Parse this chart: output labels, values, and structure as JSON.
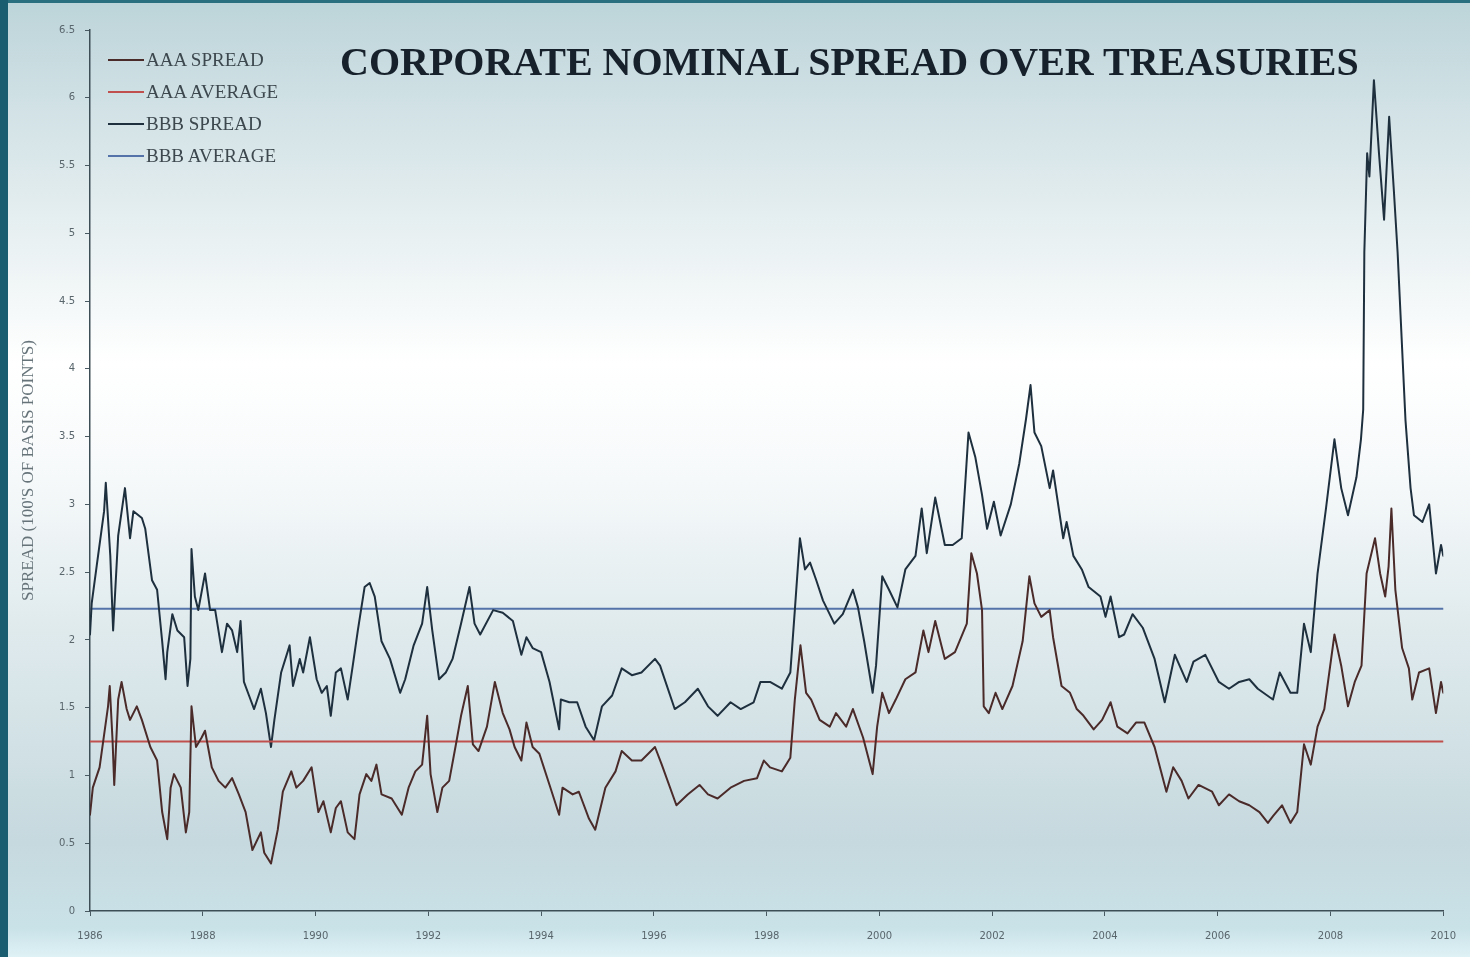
{
  "chart_data": {
    "type": "line",
    "title": "CORPORATE NOMINAL SPREAD OVER TREASURIES",
    "ylabel": "SPREAD (100'S OF BASIS POINTS)",
    "xlim": [
      1986,
      2010
    ],
    "xticks": [
      1986,
      1988,
      1990,
      1992,
      1994,
      1996,
      1998,
      2000,
      2002,
      2004,
      2006,
      2008,
      2010
    ],
    "ylim": [
      0,
      6.5
    ],
    "yticks": [
      0,
      0.5,
      1,
      1.5,
      2,
      2.5,
      3,
      3.5,
      4,
      4.5,
      5,
      5.5,
      6,
      6.5
    ],
    "grid": false,
    "legend": "top left",
    "series": [
      {
        "name": "AAA SPREAD",
        "color": "#4b2a2a",
        "x": [
          1986.0,
          1986.05,
          1986.17,
          1986.32,
          1986.35,
          1986.4,
          1986.43,
          1986.5,
          1986.56,
          1986.65,
          1986.71,
          1986.83,
          1986.92,
          1987.07,
          1987.19,
          1987.28,
          1987.37,
          1987.43,
          1987.49,
          1987.61,
          1987.7,
          1987.76,
          1987.8,
          1987.88,
          1987.98,
          1988.04,
          1988.16,
          1988.28,
          1988.4,
          1988.52,
          1988.64,
          1988.76,
          1988.88,
          1989.03,
          1989.09,
          1989.21,
          1989.33,
          1989.42,
          1989.57,
          1989.66,
          1989.78,
          1989.93,
          1990.05,
          1990.14,
          1990.27,
          1990.36,
          1990.45,
          1990.57,
          1990.69,
          1990.78,
          1990.9,
          1990.99,
          1991.08,
          1991.17,
          1991.35,
          1991.53,
          1991.65,
          1991.77,
          1991.89,
          1991.98,
          1992.04,
          1992.16,
          1992.25,
          1992.37,
          1992.49,
          1992.58,
          1992.7,
          1992.79,
          1992.89,
          1993.04,
          1993.18,
          1993.32,
          1993.44,
          1993.53,
          1993.65,
          1993.74,
          1993.85,
          1993.97,
          1994.15,
          1994.32,
          1994.38,
          1994.56,
          1994.67,
          1994.85,
          1994.96,
          1995.14,
          1995.32,
          1995.43,
          1995.61,
          1995.78,
          1996.02,
          1996.14,
          1996.4,
          1996.6,
          1996.81,
          1996.96,
          1997.13,
          1997.36,
          1997.6,
          1997.83,
          1997.95,
          1998.06,
          1998.27,
          1998.42,
          1998.5,
          1998.6,
          1998.7,
          1998.79,
          1998.94,
          1999.12,
          1999.23,
          1999.41,
          1999.53,
          1999.71,
          1999.88,
          1999.96,
          2000.05,
          2000.17,
          2000.29,
          2000.46,
          2000.64,
          2000.78,
          2000.87,
          2000.99,
          2001.16,
          2001.34,
          2001.55,
          2001.63,
          2001.73,
          2001.82,
          2001.85,
          2001.94,
          2002.06,
          2002.18,
          2002.36,
          2002.54,
          2002.66,
          2002.75,
          2002.87,
          2003.02,
          2003.08,
          2003.23,
          2003.38,
          2003.5,
          2003.62,
          2003.8,
          2003.95,
          2004.1,
          2004.22,
          2004.4,
          2004.55,
          2004.7,
          2004.88,
          2005.09,
          2005.21,
          2005.36,
          2005.48,
          2005.66,
          2005.9,
          2006.02,
          2006.2,
          2006.38,
          2006.56,
          2006.74,
          2006.89,
          2006.98,
          2007.14,
          2007.29,
          2007.41,
          2007.53,
          2007.65,
          2007.77,
          2007.89,
          2008.07,
          2008.19,
          2008.31,
          2008.43,
          2008.55,
          2008.64,
          2008.79,
          2008.88,
          2008.97,
          2009.03,
          2009.08,
          2009.15,
          2009.27,
          2009.39,
          2009.45,
          2009.57,
          2009.75,
          2009.87,
          2009.96,
          2010.0
        ],
        "values": [
          0.71,
          0.91,
          1.06,
          1.51,
          1.66,
          1.26,
          0.93,
          1.56,
          1.69,
          1.49,
          1.41,
          1.51,
          1.41,
          1.21,
          1.11,
          0.73,
          0.53,
          0.91,
          1.01,
          0.91,
          0.58,
          0.73,
          1.51,
          1.21,
          1.28,
          1.33,
          1.06,
          0.96,
          0.91,
          0.98,
          0.86,
          0.73,
          0.45,
          0.58,
          0.43,
          0.35,
          0.6,
          0.88,
          1.03,
          0.91,
          0.96,
          1.06,
          0.73,
          0.81,
          0.58,
          0.76,
          0.81,
          0.58,
          0.53,
          0.86,
          1.01,
          0.96,
          1.08,
          0.86,
          0.83,
          0.71,
          0.91,
          1.03,
          1.08,
          1.44,
          1.01,
          0.73,
          0.91,
          0.96,
          1.23,
          1.44,
          1.66,
          1.23,
          1.18,
          1.36,
          1.69,
          1.46,
          1.34,
          1.21,
          1.11,
          1.39,
          1.21,
          1.16,
          0.93,
          0.71,
          0.91,
          0.86,
          0.88,
          0.68,
          0.6,
          0.91,
          1.03,
          1.18,
          1.11,
          1.11,
          1.21,
          1.08,
          0.78,
          0.86,
          0.93,
          0.86,
          0.83,
          0.91,
          0.96,
          0.98,
          1.11,
          1.06,
          1.03,
          1.13,
          1.56,
          1.96,
          1.61,
          1.56,
          1.41,
          1.36,
          1.46,
          1.36,
          1.49,
          1.28,
          1.01,
          1.36,
          1.61,
          1.46,
          1.56,
          1.71,
          1.76,
          2.07,
          1.91,
          2.14,
          1.86,
          1.91,
          2.12,
          2.64,
          2.49,
          2.22,
          1.51,
          1.46,
          1.61,
          1.49,
          1.66,
          1.99,
          2.47,
          2.27,
          2.17,
          2.22,
          2.02,
          1.66,
          1.61,
          1.49,
          1.44,
          1.34,
          1.41,
          1.54,
          1.36,
          1.31,
          1.39,
          1.39,
          1.21,
          0.88,
          1.06,
          0.96,
          0.83,
          0.93,
          0.88,
          0.78,
          0.86,
          0.81,
          0.78,
          0.73,
          0.65,
          0.7,
          0.78,
          0.65,
          0.73,
          1.23,
          1.08,
          1.36,
          1.49,
          2.04,
          1.81,
          1.51,
          1.69,
          1.81,
          2.49,
          2.75,
          2.49,
          2.32,
          2.54,
          2.97,
          2.37,
          1.94,
          1.79,
          1.56,
          1.76,
          1.79,
          1.46,
          1.69,
          1.61
        ]
      },
      {
        "name": "AAA AVERAGE",
        "color": "#c0504d",
        "x": [
          1986,
          2010
        ],
        "values": [
          1.25,
          1.25
        ]
      },
      {
        "name": "BBB SPREAD",
        "color": "#1e2f3e",
        "x": [
          1986.0,
          1986.03,
          1986.12,
          1986.25,
          1986.28,
          1986.36,
          1986.41,
          1986.5,
          1986.62,
          1986.71,
          1986.77,
          1986.92,
          1986.98,
          1987.1,
          1987.19,
          1987.28,
          1987.34,
          1987.37,
          1987.46,
          1987.55,
          1987.67,
          1987.73,
          1987.78,
          1987.8,
          1987.86,
          1987.92,
          1988.04,
          1988.13,
          1988.22,
          1988.34,
          1988.43,
          1988.52,
          1988.61,
          1988.67,
          1988.73,
          1988.82,
          1988.91,
          1989.03,
          1989.12,
          1989.21,
          1989.27,
          1989.39,
          1989.54,
          1989.6,
          1989.72,
          1989.78,
          1989.9,
          1990.02,
          1990.11,
          1990.2,
          1990.27,
          1990.36,
          1990.45,
          1990.57,
          1990.66,
          1990.75,
          1990.87,
          1990.96,
          1991.05,
          1991.17,
          1991.32,
          1991.5,
          1991.59,
          1991.74,
          1991.89,
          1991.98,
          1992.07,
          1992.19,
          1992.31,
          1992.43,
          1992.58,
          1992.73,
          1992.82,
          1992.92,
          1993.15,
          1993.32,
          1993.5,
          1993.65,
          1993.74,
          1993.85,
          1994.0,
          1994.15,
          1994.32,
          1994.35,
          1994.5,
          1994.64,
          1994.79,
          1994.94,
          1995.08,
          1995.26,
          1995.43,
          1995.61,
          1995.78,
          1996.02,
          1996.11,
          1996.37,
          1996.55,
          1996.78,
          1996.96,
          1997.13,
          1997.36,
          1997.54,
          1997.77,
          1997.89,
          1998.06,
          1998.27,
          1998.42,
          1998.5,
          1998.59,
          1998.68,
          1998.77,
          1998.88,
          1999.0,
          1999.2,
          1999.35,
          1999.53,
          1999.62,
          1999.73,
          1999.88,
          1999.94,
          2000.05,
          2000.17,
          2000.32,
          2000.46,
          2000.64,
          2000.75,
          2000.84,
          2000.99,
          2001.16,
          2001.3,
          2001.46,
          2001.58,
          2001.7,
          2001.82,
          2001.91,
          2002.03,
          2002.15,
          2002.33,
          2002.48,
          2002.6,
          2002.68,
          2002.75,
          2002.87,
          2003.02,
          2003.08,
          2003.26,
          2003.32,
          2003.44,
          2003.59,
          2003.71,
          2003.92,
          2004.01,
          2004.1,
          2004.25,
          2004.34,
          2004.49,
          2004.67,
          2004.88,
          2005.06,
          2005.24,
          2005.45,
          2005.57,
          2005.78,
          2006.02,
          2006.2,
          2006.38,
          2006.56,
          2006.71,
          2006.98,
          2007.1,
          2007.29,
          2007.41,
          2007.53,
          2007.65,
          2007.77,
          2007.92,
          2008.07,
          2008.19,
          2008.31,
          2008.46,
          2008.54,
          2008.58,
          2008.6,
          2008.65,
          2008.69,
          2008.77,
          2008.86,
          2008.95,
          2009.04,
          2009.12,
          2009.19,
          2009.33,
          2009.42,
          2009.48,
          2009.63,
          2009.75,
          2009.87,
          2009.96,
          2010.0
        ],
        "values": [
          2.04,
          2.27,
          2.55,
          2.95,
          3.16,
          2.62,
          2.07,
          2.77,
          3.12,
          2.75,
          2.95,
          2.9,
          2.82,
          2.44,
          2.37,
          1.99,
          1.71,
          1.91,
          2.19,
          2.07,
          2.02,
          1.66,
          1.86,
          2.67,
          2.32,
          2.22,
          2.49,
          2.22,
          2.22,
          1.91,
          2.12,
          2.07,
          1.91,
          2.14,
          1.69,
          1.59,
          1.49,
          1.64,
          1.46,
          1.21,
          1.41,
          1.76,
          1.96,
          1.66,
          1.86,
          1.76,
          2.02,
          1.71,
          1.61,
          1.66,
          1.44,
          1.76,
          1.79,
          1.56,
          1.81,
          2.07,
          2.39,
          2.42,
          2.32,
          1.99,
          1.86,
          1.61,
          1.71,
          1.96,
          2.12,
          2.39,
          2.07,
          1.71,
          1.76,
          1.86,
          2.12,
          2.39,
          2.12,
          2.04,
          2.22,
          2.2,
          2.14,
          1.89,
          2.02,
          1.94,
          1.91,
          1.69,
          1.34,
          1.56,
          1.54,
          1.54,
          1.36,
          1.26,
          1.51,
          1.59,
          1.79,
          1.74,
          1.76,
          1.86,
          1.81,
          1.49,
          1.54,
          1.64,
          1.51,
          1.44,
          1.54,
          1.49,
          1.54,
          1.69,
          1.69,
          1.64,
          1.76,
          2.22,
          2.75,
          2.52,
          2.57,
          2.44,
          2.29,
          2.12,
          2.19,
          2.37,
          2.24,
          1.99,
          1.61,
          1.81,
          2.47,
          2.37,
          2.24,
          2.52,
          2.62,
          2.97,
          2.64,
          3.05,
          2.7,
          2.7,
          2.75,
          3.53,
          3.35,
          3.07,
          2.82,
          3.02,
          2.77,
          3.0,
          3.3,
          3.63,
          3.88,
          3.53,
          3.43,
          3.12,
          3.25,
          2.75,
          2.87,
          2.62,
          2.52,
          2.39,
          2.32,
          2.17,
          2.32,
          2.02,
          2.04,
          2.19,
          2.09,
          1.86,
          1.54,
          1.89,
          1.69,
          1.84,
          1.89,
          1.69,
          1.64,
          1.69,
          1.71,
          1.64,
          1.56,
          1.76,
          1.61,
          1.61,
          2.12,
          1.91,
          2.49,
          2.97,
          3.48,
          3.12,
          2.92,
          3.2,
          3.48,
          3.7,
          4.86,
          5.59,
          5.42,
          6.13,
          5.59,
          5.1,
          5.86,
          5.34,
          4.86,
          3.62,
          3.12,
          2.92,
          2.87,
          3.0,
          2.49,
          2.7,
          2.62
        ]
      },
      {
        "name": "BBB AVERAGE",
        "color": "#5473a8",
        "x": [
          1986,
          2010
        ],
        "values": [
          2.23,
          2.23
        ]
      }
    ]
  }
}
